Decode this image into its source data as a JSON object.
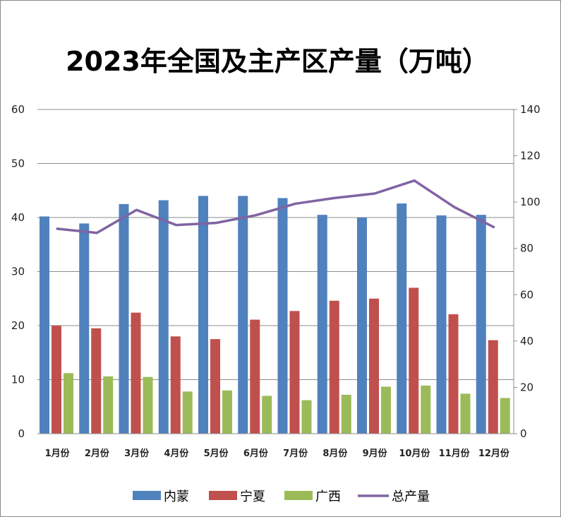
{
  "chart_data": {
    "type": "bar",
    "title": "2023年全国及主产区产量（万吨）",
    "categories": [
      "1月份",
      "2月份",
      "3月份",
      "4月份",
      "5月份",
      "6月份",
      "7月份",
      "8月份",
      "9月份",
      "10月份",
      "11月份",
      "12月份"
    ],
    "series": [
      {
        "name": "内蒙",
        "type": "bar",
        "axis": "left",
        "color": "#4f81bd",
        "values": [
          40.2,
          38.9,
          42.5,
          43.2,
          44.0,
          44.0,
          43.6,
          40.5,
          40.0,
          42.6,
          40.4,
          40.5
        ]
      },
      {
        "name": "宁夏",
        "type": "bar",
        "axis": "left",
        "color": "#c0504d",
        "values": [
          20.0,
          19.5,
          22.4,
          18.0,
          17.5,
          21.1,
          22.7,
          24.6,
          25.0,
          27.0,
          22.1,
          17.3
        ]
      },
      {
        "name": "广西",
        "type": "bar",
        "axis": "left",
        "color": "#9bbb59",
        "values": [
          11.2,
          10.6,
          10.5,
          7.8,
          8.0,
          7.0,
          6.2,
          7.2,
          8.7,
          8.9,
          7.4,
          6.6
        ]
      },
      {
        "name": "总产量",
        "type": "line",
        "axis": "right",
        "color": "#8064a2",
        "values": [
          88.5,
          86.7,
          96.6,
          90.1,
          91.0,
          94.3,
          99.3,
          101.8,
          103.7,
          109.3,
          97.9,
          89.2
        ]
      }
    ],
    "y_left": {
      "min": 0,
      "max": 60,
      "ticks": [
        "0",
        "10",
        "20",
        "30",
        "40",
        "50",
        "60"
      ]
    },
    "y_right": {
      "min": 0,
      "max": 140,
      "ticks": [
        "0",
        "20",
        "40",
        "60",
        "80",
        "100",
        "120",
        "140"
      ]
    },
    "grid": true,
    "legend_position": "bottom"
  }
}
